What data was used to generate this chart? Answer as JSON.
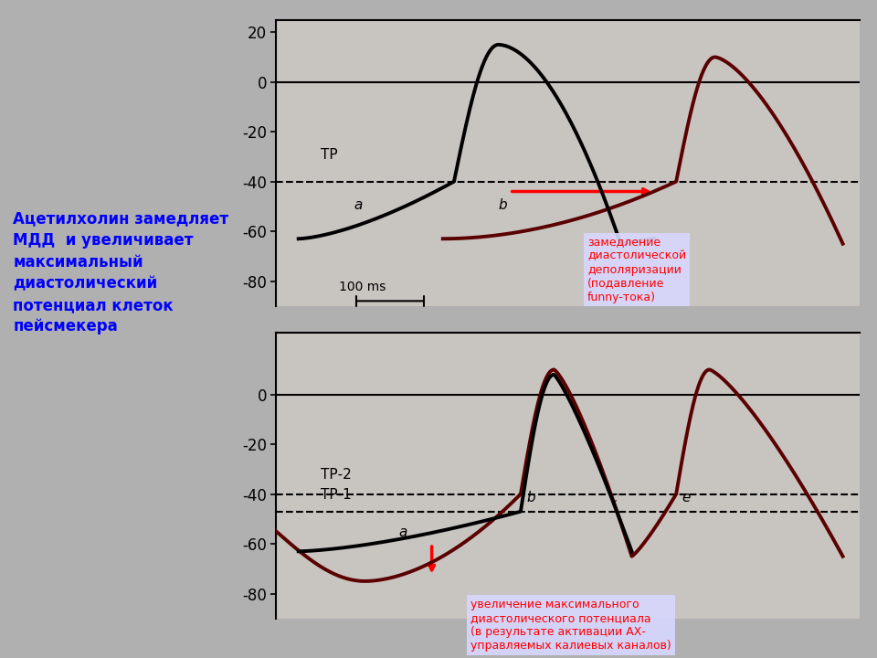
{
  "bg_color": "#b8b8b8",
  "panel_bg": "#c8c4c0",
  "black_color": "#000000",
  "dark_red_color": "#5a0000",
  "left_text": "Ацетилхолин замедляет\nМДД  и увеличивает\nмаксимальный\nдиастолический\nпотенциал клеток\nпейсмекера",
  "annotation1_text": "замедление\nдиастолической\nдеполяризации\n(подавление\nfunny-тока)",
  "annotation2_text": "увеличение максимального\nдиастолического потенциала\n(в результате активации АХ-\nуправляемых калиевых каналов)",
  "tp_label": "ТР",
  "tp1_label": "ТР-1",
  "tp2_label": "ТР-2",
  "scale_bar_ms": "100 ms"
}
